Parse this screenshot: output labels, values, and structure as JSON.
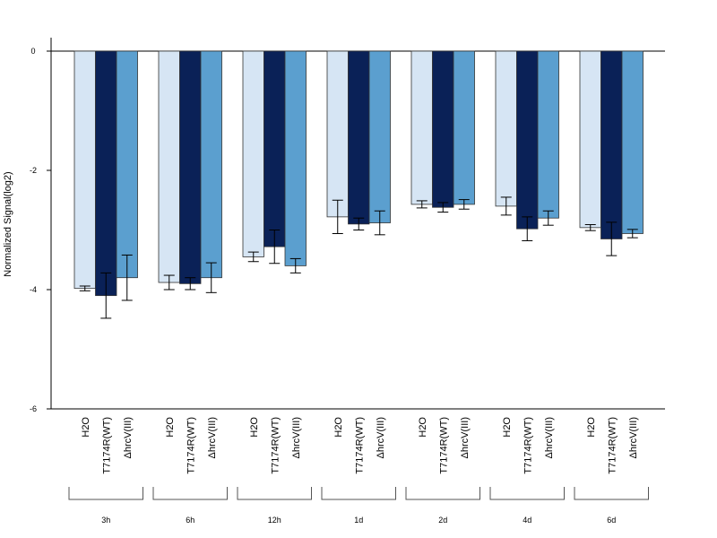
{
  "chart_data": {
    "type": "bar",
    "title": "",
    "ylabel": "Normalized Signal(log2)",
    "xlabel": "",
    "ylim": [
      -6,
      0.2
    ],
    "yticks": [
      0,
      -2,
      -4,
      -6
    ],
    "ytick_labels": [
      "0",
      "-2",
      "-4",
      "-6"
    ],
    "grid": false,
    "legend": "none",
    "bar_labels": [
      "H2O",
      "T7174R(WT)",
      "ΔhrcV(III)"
    ],
    "groups": [
      "3h",
      "6h",
      "12h",
      "1d",
      "2d",
      "4d",
      "6d"
    ],
    "series": [
      {
        "name": "H2O",
        "color": "#d6e5f4",
        "values": [
          -3.98,
          -3.88,
          -3.45,
          -2.78,
          -2.57,
          -2.6,
          -2.96
        ],
        "error": [
          0.04,
          0.12,
          0.08,
          0.28,
          0.06,
          0.15,
          0.05
        ]
      },
      {
        "name": "T7174R(WT)",
        "color": "#0a2157",
        "values": [
          -4.1,
          -3.9,
          -3.28,
          -2.9,
          -2.62,
          -2.98,
          -3.15
        ],
        "error": [
          0.38,
          0.1,
          0.28,
          0.1,
          0.08,
          0.2,
          0.28
        ]
      },
      {
        "name": "ΔhrcV(III)",
        "color": "#5b9fcf",
        "values": [
          -3.8,
          -3.8,
          -3.6,
          -2.88,
          -2.57,
          -2.8,
          -3.06
        ],
        "error": [
          0.38,
          0.25,
          0.12,
          0.2,
          0.08,
          0.12,
          0.07
        ]
      }
    ]
  }
}
